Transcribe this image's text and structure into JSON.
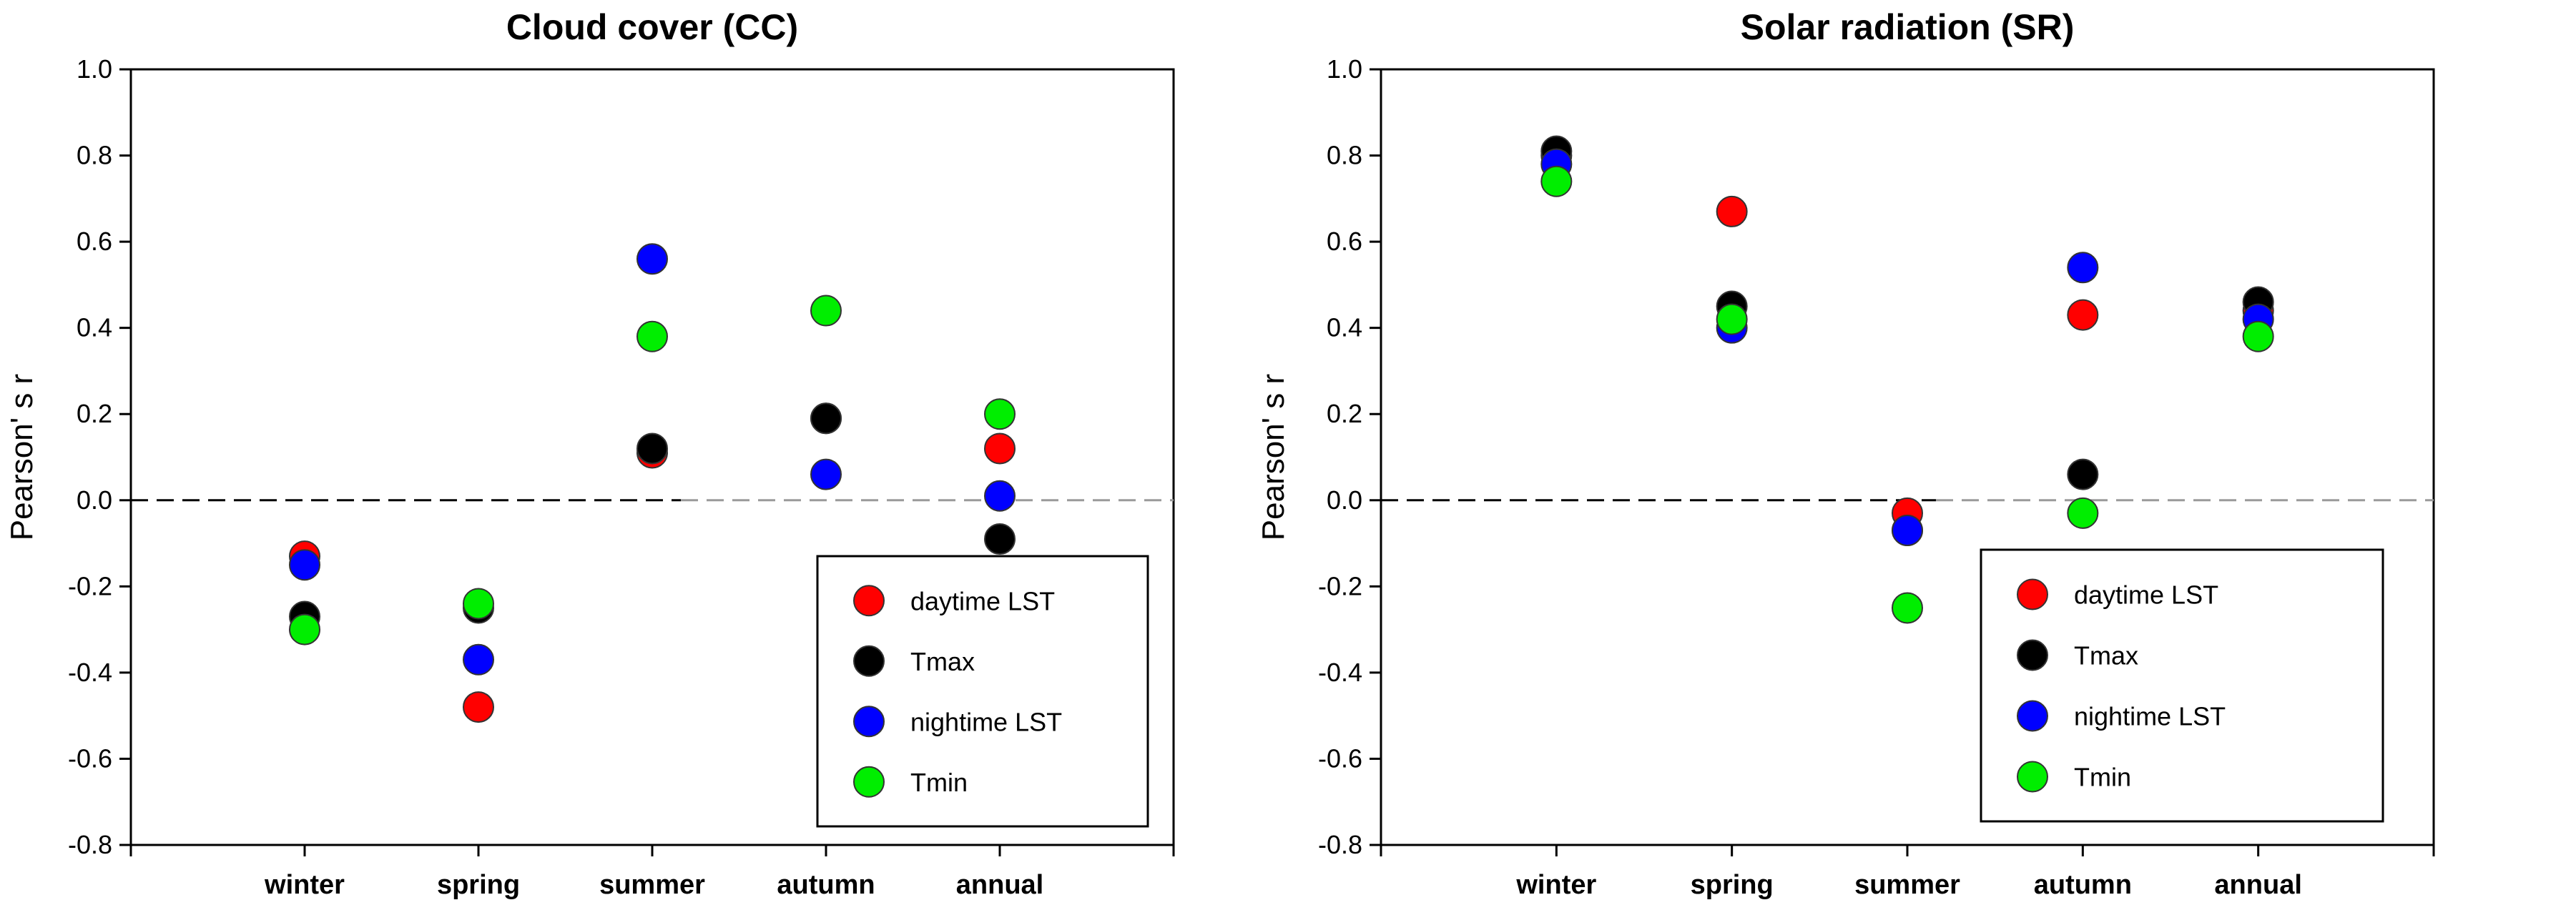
{
  "chart_data": [
    {
      "type": "scatter",
      "title": "Cloud cover (CC)",
      "ylabel": "Pearson' s r",
      "xlabel": "",
      "categories": [
        "winter",
        "spring",
        "summer",
        "autumn",
        "annual"
      ],
      "ylim": [
        -0.8,
        1.0
      ],
      "yticks": [
        "-0.8",
        "-0.6",
        "-0.4",
        "-0.2",
        "0.0",
        "0.2",
        "0.4",
        "0.6",
        "0.8",
        "1.0"
      ],
      "reference_line": 0.0,
      "grid": false,
      "legend_position": "bottom-right",
      "series": [
        {
          "name": "daytime LST",
          "color": "#ff0000",
          "values": [
            -0.13,
            -0.48,
            0.11,
            0.19,
            0.12
          ]
        },
        {
          "name": "Tmax",
          "color": "#000000",
          "values": [
            -0.27,
            -0.25,
            0.12,
            0.19,
            -0.09
          ]
        },
        {
          "name": "nightime LST",
          "color": "#0000ff",
          "values": [
            -0.15,
            -0.37,
            0.56,
            0.06,
            0.01
          ]
        },
        {
          "name": "Tmin",
          "color": "#00ee00",
          "values": [
            -0.3,
            -0.24,
            0.38,
            0.44,
            0.2
          ]
        }
      ]
    },
    {
      "type": "scatter",
      "title": "Solar radiation (SR)",
      "ylabel": "Pearson' s r",
      "xlabel": "",
      "categories": [
        "winter",
        "spring",
        "summer",
        "autumn",
        "annual"
      ],
      "ylim": [
        -0.8,
        1.0
      ],
      "yticks": [
        "-0.8",
        "-0.6",
        "-0.4",
        "-0.2",
        "0.0",
        "0.2",
        "0.4",
        "0.6",
        "0.8",
        "1.0"
      ],
      "reference_line": 0.0,
      "grid": false,
      "legend_position": "bottom-right",
      "series": [
        {
          "name": "daytime LST",
          "color": "#ff0000",
          "values": [
            0.8,
            0.67,
            -0.03,
            0.43,
            0.44
          ]
        },
        {
          "name": "Tmax",
          "color": "#000000",
          "values": [
            0.81,
            0.45,
            -0.07,
            0.06,
            0.46
          ]
        },
        {
          "name": "nightime LST",
          "color": "#0000ff",
          "values": [
            0.78,
            0.4,
            -0.07,
            0.54,
            0.42
          ]
        },
        {
          "name": "Tmin",
          "color": "#00ee00",
          "values": [
            0.74,
            0.42,
            -0.25,
            -0.03,
            0.38
          ]
        }
      ]
    }
  ]
}
